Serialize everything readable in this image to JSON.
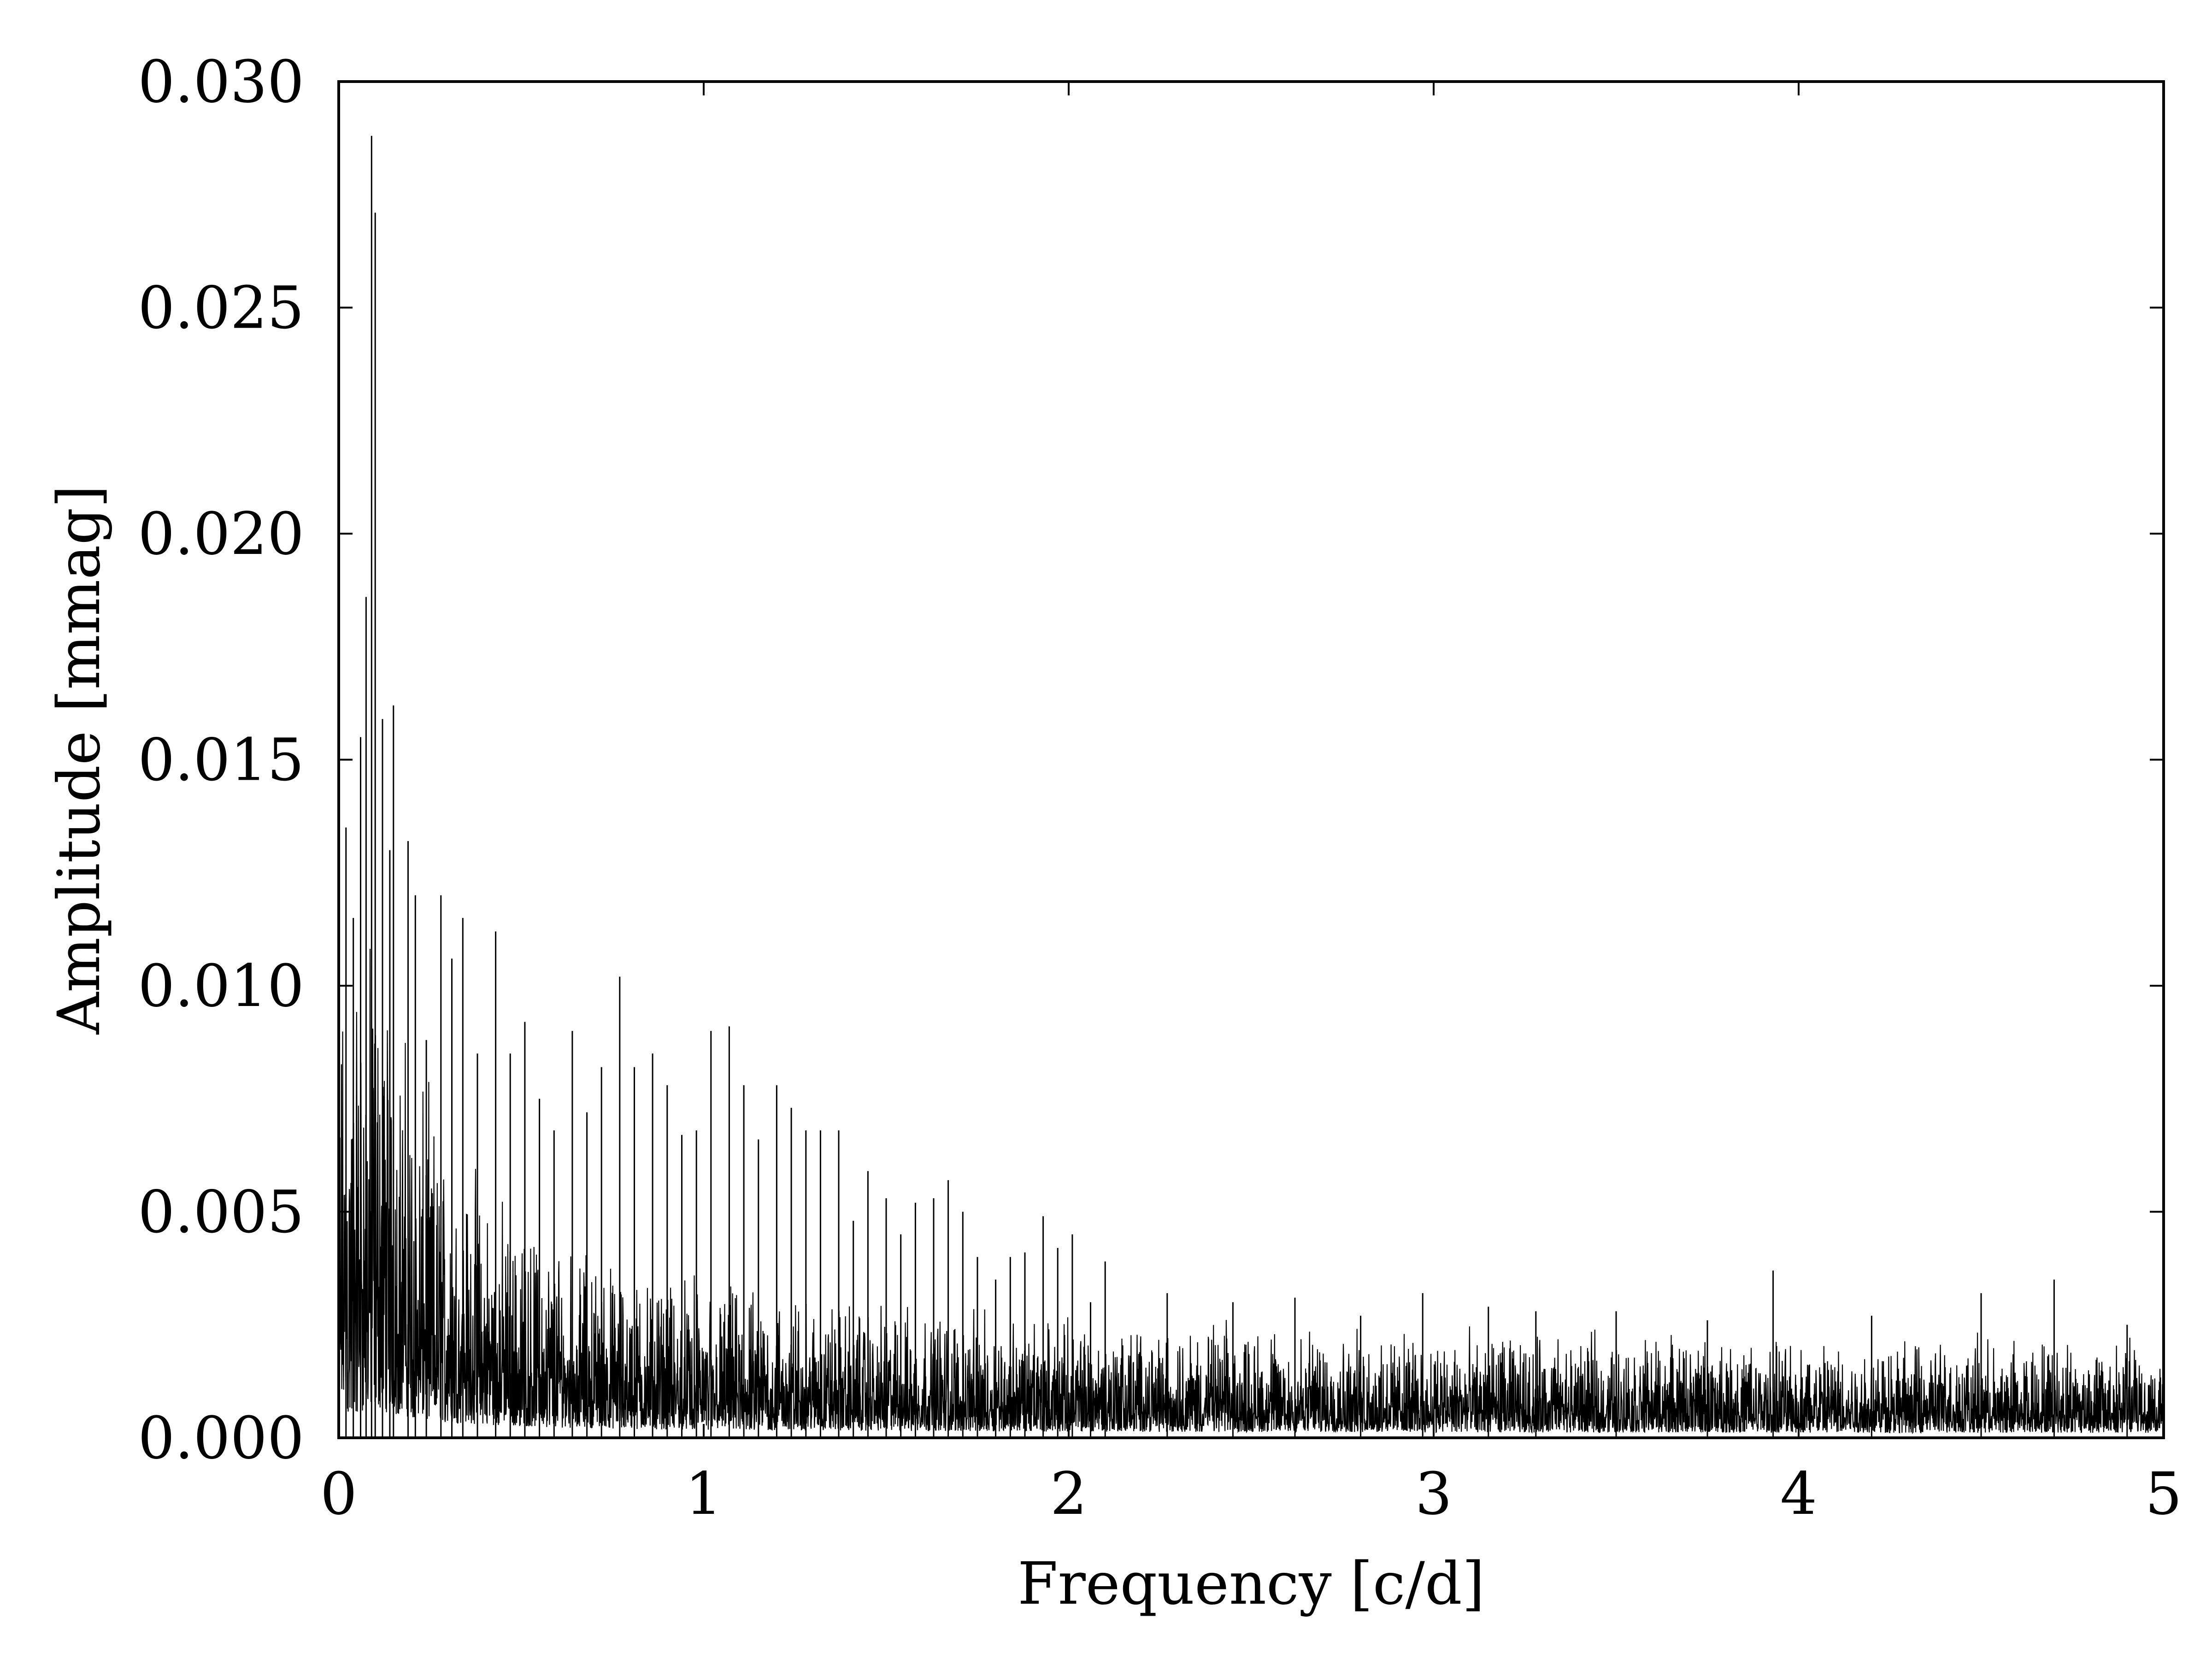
{
  "chart_data": {
    "type": "line",
    "title": "",
    "xlabel": "Frequency [c/d]",
    "ylabel": "Amplitude [mmag]",
    "xlim": [
      0,
      5
    ],
    "ylim": [
      0,
      0.03
    ],
    "grid": false,
    "legend": "none",
    "line_color": "#000000",
    "x_ticks": [
      0,
      1,
      2,
      3,
      4,
      5
    ],
    "x_tick_labels": [
      "0",
      "1",
      "2",
      "3",
      "4",
      "5"
    ],
    "y_ticks": [
      0,
      0.005,
      0.01,
      0.015,
      0.02,
      0.025,
      0.03
    ],
    "y_tick_labels": [
      "0.000",
      "0.005",
      "0.010",
      "0.015",
      "0.020",
      "0.025",
      "0.030"
    ],
    "peaks": [
      {
        "x": 0.02,
        "y": 0.0135
      },
      {
        "x": 0.04,
        "y": 0.0115
      },
      {
        "x": 0.06,
        "y": 0.0155
      },
      {
        "x": 0.075,
        "y": 0.0186
      },
      {
        "x": 0.09,
        "y": 0.0288
      },
      {
        "x": 0.1,
        "y": 0.0271
      },
      {
        "x": 0.12,
        "y": 0.0159
      },
      {
        "x": 0.14,
        "y": 0.013
      },
      {
        "x": 0.15,
        "y": 0.0162
      },
      {
        "x": 0.19,
        "y": 0.0132
      },
      {
        "x": 0.21,
        "y": 0.012
      },
      {
        "x": 0.24,
        "y": 0.0088
      },
      {
        "x": 0.28,
        "y": 0.012
      },
      {
        "x": 0.31,
        "y": 0.0106
      },
      {
        "x": 0.34,
        "y": 0.0115
      },
      {
        "x": 0.38,
        "y": 0.0085
      },
      {
        "x": 0.43,
        "y": 0.0112
      },
      {
        "x": 0.47,
        "y": 0.0085
      },
      {
        "x": 0.51,
        "y": 0.0092
      },
      {
        "x": 0.55,
        "y": 0.0075
      },
      {
        "x": 0.59,
        "y": 0.0068
      },
      {
        "x": 0.64,
        "y": 0.009
      },
      {
        "x": 0.68,
        "y": 0.0072
      },
      {
        "x": 0.72,
        "y": 0.0082
      },
      {
        "x": 0.77,
        "y": 0.0102
      },
      {
        "x": 0.81,
        "y": 0.0082
      },
      {
        "x": 0.86,
        "y": 0.0085
      },
      {
        "x": 0.9,
        "y": 0.0078
      },
      {
        "x": 0.94,
        "y": 0.0067
      },
      {
        "x": 0.98,
        "y": 0.0068
      },
      {
        "x": 1.02,
        "y": 0.009
      },
      {
        "x": 1.07,
        "y": 0.0091
      },
      {
        "x": 1.11,
        "y": 0.0078
      },
      {
        "x": 1.15,
        "y": 0.0066
      },
      {
        "x": 1.2,
        "y": 0.0078
      },
      {
        "x": 1.24,
        "y": 0.0073
      },
      {
        "x": 1.28,
        "y": 0.0068
      },
      {
        "x": 1.32,
        "y": 0.0068
      },
      {
        "x": 1.37,
        "y": 0.0068
      },
      {
        "x": 1.41,
        "y": 0.0048
      },
      {
        "x": 1.45,
        "y": 0.0059
      },
      {
        "x": 1.5,
        "y": 0.0053
      },
      {
        "x": 1.54,
        "y": 0.0045
      },
      {
        "x": 1.58,
        "y": 0.0052
      },
      {
        "x": 1.63,
        "y": 0.0053
      },
      {
        "x": 1.67,
        "y": 0.0057
      },
      {
        "x": 1.71,
        "y": 0.005
      },
      {
        "x": 1.75,
        "y": 0.004
      },
      {
        "x": 1.8,
        "y": 0.0035
      },
      {
        "x": 1.84,
        "y": 0.004
      },
      {
        "x": 1.88,
        "y": 0.0041
      },
      {
        "x": 1.93,
        "y": 0.0049
      },
      {
        "x": 1.97,
        "y": 0.0042
      },
      {
        "x": 2.01,
        "y": 0.0045
      },
      {
        "x": 2.06,
        "y": 0.003
      },
      {
        "x": 2.1,
        "y": 0.0039
      },
      {
        "x": 2.27,
        "y": 0.0032
      },
      {
        "x": 2.45,
        "y": 0.003
      },
      {
        "x": 2.62,
        "y": 0.0031
      },
      {
        "x": 2.8,
        "y": 0.0027
      },
      {
        "x": 2.97,
        "y": 0.0032
      },
      {
        "x": 3.15,
        "y": 0.0029
      },
      {
        "x": 3.28,
        "y": 0.0028
      },
      {
        "x": 3.5,
        "y": 0.0028
      },
      {
        "x": 3.75,
        "y": 0.0026
      },
      {
        "x": 3.93,
        "y": 0.0037
      },
      {
        "x": 4.2,
        "y": 0.0027
      },
      {
        "x": 4.5,
        "y": 0.0032
      },
      {
        "x": 4.7,
        "y": 0.0035
      },
      {
        "x": 4.9,
        "y": 0.0025
      }
    ],
    "noise_floor": [
      {
        "x": 0.0,
        "y": 0.0065
      },
      {
        "x": 0.1,
        "y": 0.0075
      },
      {
        "x": 0.2,
        "y": 0.0055
      },
      {
        "x": 0.3,
        "y": 0.0042
      },
      {
        "x": 0.5,
        "y": 0.0031
      },
      {
        "x": 0.75,
        "y": 0.0025
      },
      {
        "x": 1.0,
        "y": 0.0022
      },
      {
        "x": 1.5,
        "y": 0.0019
      },
      {
        "x": 2.0,
        "y": 0.0017
      },
      {
        "x": 3.0,
        "y": 0.0015
      },
      {
        "x": 4.0,
        "y": 0.0014
      },
      {
        "x": 5.0,
        "y": 0.0014
      }
    ]
  }
}
